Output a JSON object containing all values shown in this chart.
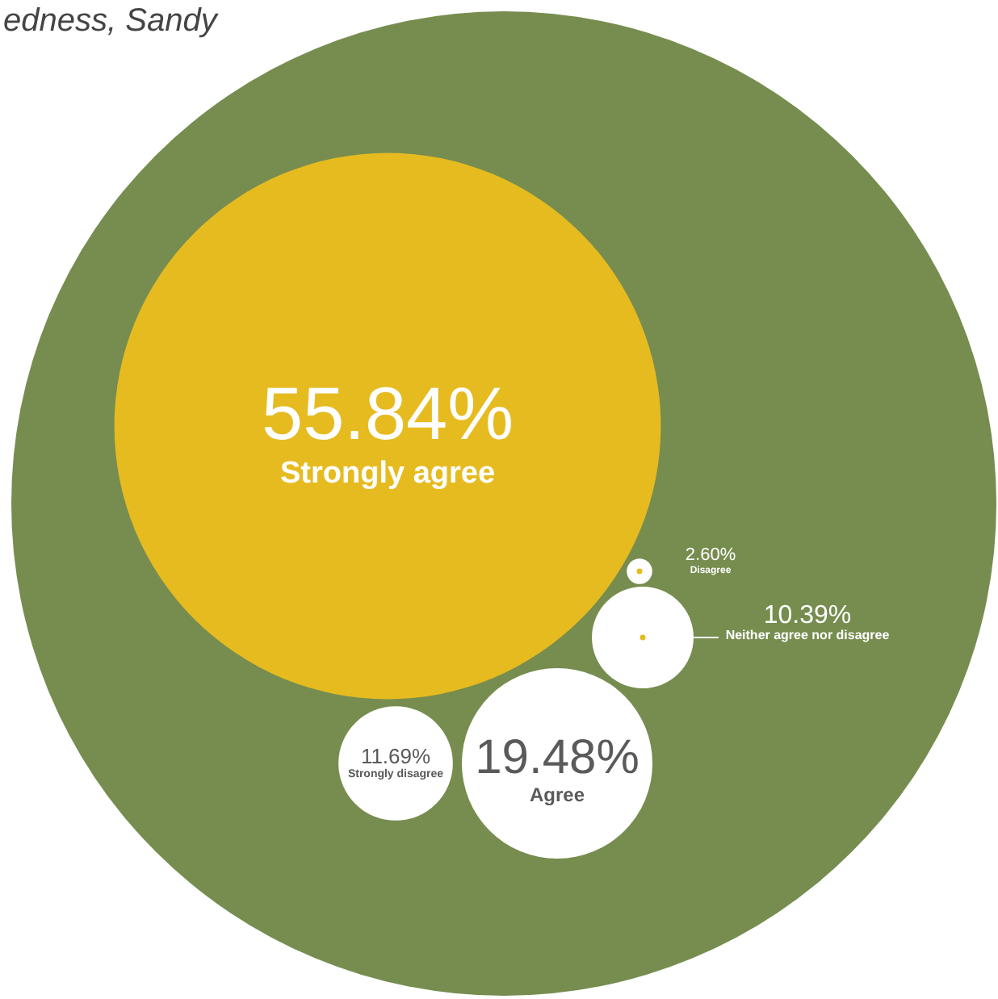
{
  "chart_data": {
    "type": "other",
    "title": "edness, Sandy",
    "categories": [
      "Strongly agree",
      "Agree",
      "Neither agree nor disagree",
      "Disagree",
      "Strongly disagree"
    ],
    "values": [
      55.84,
      19.48,
      10.39,
      2.6,
      11.69
    ],
    "value_labels": [
      "55.84%",
      "19.48%",
      "10.39%",
      "2.60%",
      "11.69%"
    ],
    "colors": [
      "#e6bb20",
      "#ffffff",
      "#ffffff",
      "#ffffff",
      "#ffffff"
    ]
  }
}
